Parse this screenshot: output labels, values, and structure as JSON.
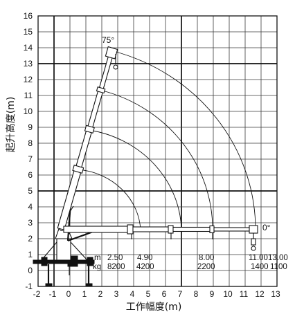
{
  "diagram": {
    "y_axis": {
      "title": "起升高度(m)",
      "ticks": [
        "16",
        "15",
        "14",
        "13",
        "12",
        "11",
        "10",
        "9",
        "8",
        "7",
        "6",
        "5",
        "4",
        "3",
        "2",
        "1",
        "0",
        "-1"
      ]
    },
    "x_axis": {
      "title": "工作幅度(m)",
      "ticks": [
        "-2",
        "-1",
        "0",
        "1",
        "2",
        "3",
        "4",
        "5",
        "6",
        "7",
        "8",
        "9",
        "10",
        "11",
        "12",
        "13"
      ]
    },
    "boom_angle_max": "75°",
    "boom_angle_min": "0°",
    "load_table": {
      "radius_unit": "m",
      "load_unit": "kg",
      "radius": [
        "2.50",
        "4.90",
        "8.00",
        "11.00",
        "13.00"
      ],
      "load": [
        "8200",
        "4200",
        "2200",
        "1400",
        "1100"
      ]
    }
  },
  "colors": {
    "line": "#111111",
    "grid": "#3a3a3a",
    "background": "#ffffff"
  }
}
